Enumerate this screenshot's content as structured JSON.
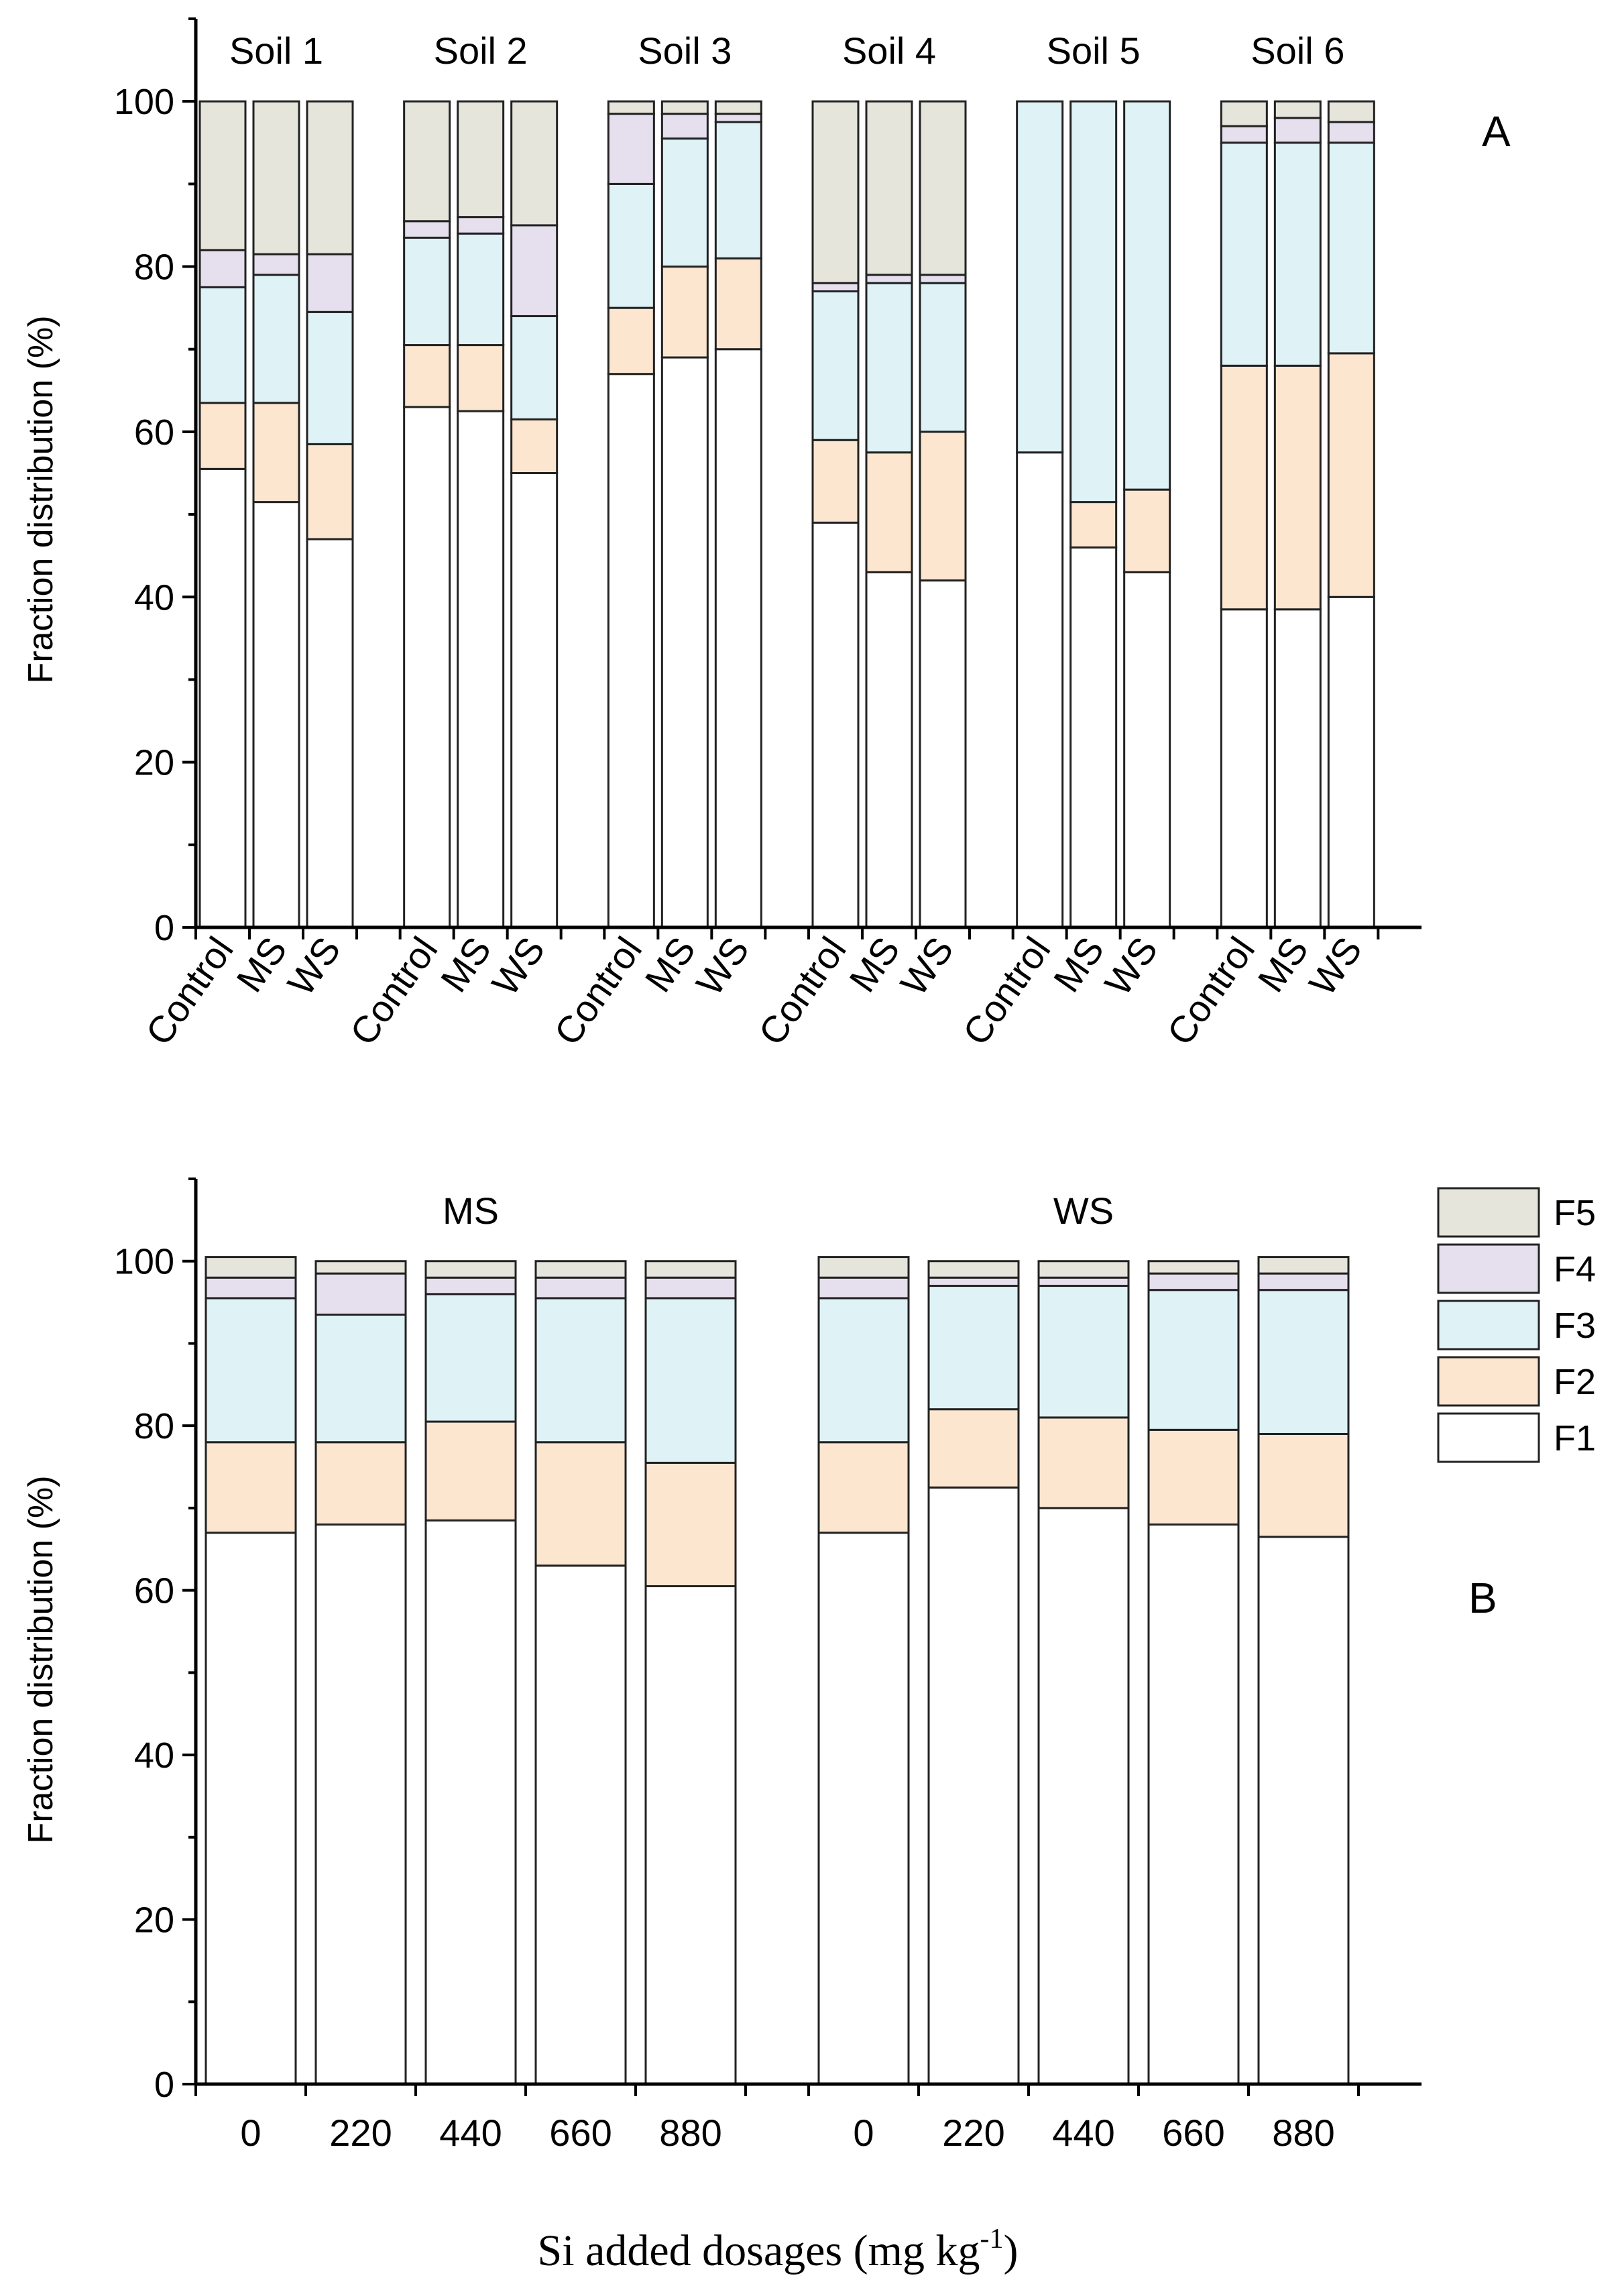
{
  "colors": {
    "F1": "#ffffff",
    "F2": "#fce6d0",
    "F3": "#dff3f6",
    "F4": "#e6e0ee",
    "F5": "#e5e5dc",
    "axis": "#000000",
    "bar_outline": "#222222"
  },
  "chart_data": [
    {
      "type": "bar",
      "stacked": true,
      "panel_label": "A",
      "ylabel": "Fraction distribution (%)",
      "ylim": [
        0,
        110
      ],
      "yticks": [
        0,
        20,
        40,
        60,
        80,
        100
      ],
      "groups": [
        {
          "label": "Soil 1",
          "bars": [
            {
              "category": "Control",
              "values": [
                55.5,
                8,
                14,
                4.5,
                18
              ]
            },
            {
              "category": "MS",
              "values": [
                51.5,
                12,
                15.5,
                2.5,
                18.5
              ]
            },
            {
              "category": "WS",
              "values": [
                47,
                11.5,
                16,
                7,
                18.5
              ]
            }
          ]
        },
        {
          "label": "Soil 2",
          "bars": [
            {
              "category": "Control",
              "values": [
                63,
                7.5,
                13,
                2,
                14.5
              ]
            },
            {
              "category": "MS",
              "values": [
                62.5,
                8,
                13.5,
                2,
                14
              ]
            },
            {
              "category": "WS",
              "values": [
                55,
                6.5,
                12.5,
                11,
                15
              ]
            }
          ]
        },
        {
          "label": "Soil 3",
          "bars": [
            {
              "category": "Control",
              "values": [
                67,
                8,
                15,
                8.5,
                1.5
              ]
            },
            {
              "category": "MS",
              "values": [
                69,
                11,
                15.5,
                3,
                1.5
              ]
            },
            {
              "category": "WS",
              "values": [
                70,
                11,
                16.5,
                1,
                1.5
              ]
            }
          ]
        },
        {
          "label": "Soil 4",
          "bars": [
            {
              "category": "Control",
              "values": [
                49,
                10,
                18,
                1,
                22
              ]
            },
            {
              "category": "MS",
              "values": [
                43,
                14.5,
                20.5,
                1,
                21
              ]
            },
            {
              "category": "WS",
              "values": [
                42,
                18,
                18,
                1,
                21
              ]
            }
          ]
        },
        {
          "label": "Soil 5",
          "bars": [
            {
              "category": "Control",
              "values": [
                57.5,
                0,
                42.5,
                0,
                0
              ]
            },
            {
              "category": "MS",
              "values": [
                46,
                5.5,
                48.5,
                0,
                0
              ]
            },
            {
              "category": "WS",
              "values": [
                43,
                10,
                47,
                0,
                0
              ]
            }
          ]
        },
        {
          "label": "Soil 6",
          "bars": [
            {
              "category": "Control",
              "values": [
                38.5,
                29.5,
                27,
                2,
                3
              ]
            },
            {
              "category": "MS",
              "values": [
                38.5,
                29.5,
                27,
                3,
                2
              ]
            },
            {
              "category": "WS",
              "values": [
                40,
                29.5,
                25.5,
                2.5,
                2.5
              ]
            }
          ]
        }
      ]
    },
    {
      "type": "bar",
      "stacked": true,
      "panel_label": "B",
      "xlabel_main": "Si added dosages (mg kg",
      "xlabel_sup": "-1",
      "xlabel_tail": ")",
      "ylabel": "Fraction distribution (%)",
      "ylim": [
        0,
        110
      ],
      "yticks": [
        0,
        20,
        40,
        60,
        80,
        100
      ],
      "legend": [
        "F5",
        "F4",
        "F3",
        "F2",
        "F1"
      ],
      "legend_position": "top-right",
      "groups": [
        {
          "label": "MS",
          "bars": [
            {
              "category": "0",
              "values": [
                67,
                11,
                17.5,
                2.5,
                2.5
              ]
            },
            {
              "category": "220",
              "values": [
                68,
                10,
                15.5,
                5,
                1.5
              ]
            },
            {
              "category": "440",
              "values": [
                68.5,
                12,
                15.5,
                2,
                2
              ]
            },
            {
              "category": "660",
              "values": [
                63,
                15,
                17.5,
                2.5,
                2
              ]
            },
            {
              "category": "880",
              "values": [
                60.5,
                15,
                20,
                2.5,
                2
              ]
            }
          ]
        },
        {
          "label": "WS",
          "bars": [
            {
              "category": "0",
              "values": [
                67,
                11,
                17.5,
                2.5,
                2.5
              ]
            },
            {
              "category": "220",
              "values": [
                72.5,
                9.5,
                15,
                1,
                2
              ]
            },
            {
              "category": "440",
              "values": [
                70,
                11,
                16,
                1,
                2
              ]
            },
            {
              "category": "660",
              "values": [
                68,
                11.5,
                17,
                2,
                1.5
              ]
            },
            {
              "category": "880",
              "values": [
                66.5,
                12.5,
                17.5,
                2,
                2
              ]
            }
          ]
        }
      ]
    }
  ]
}
